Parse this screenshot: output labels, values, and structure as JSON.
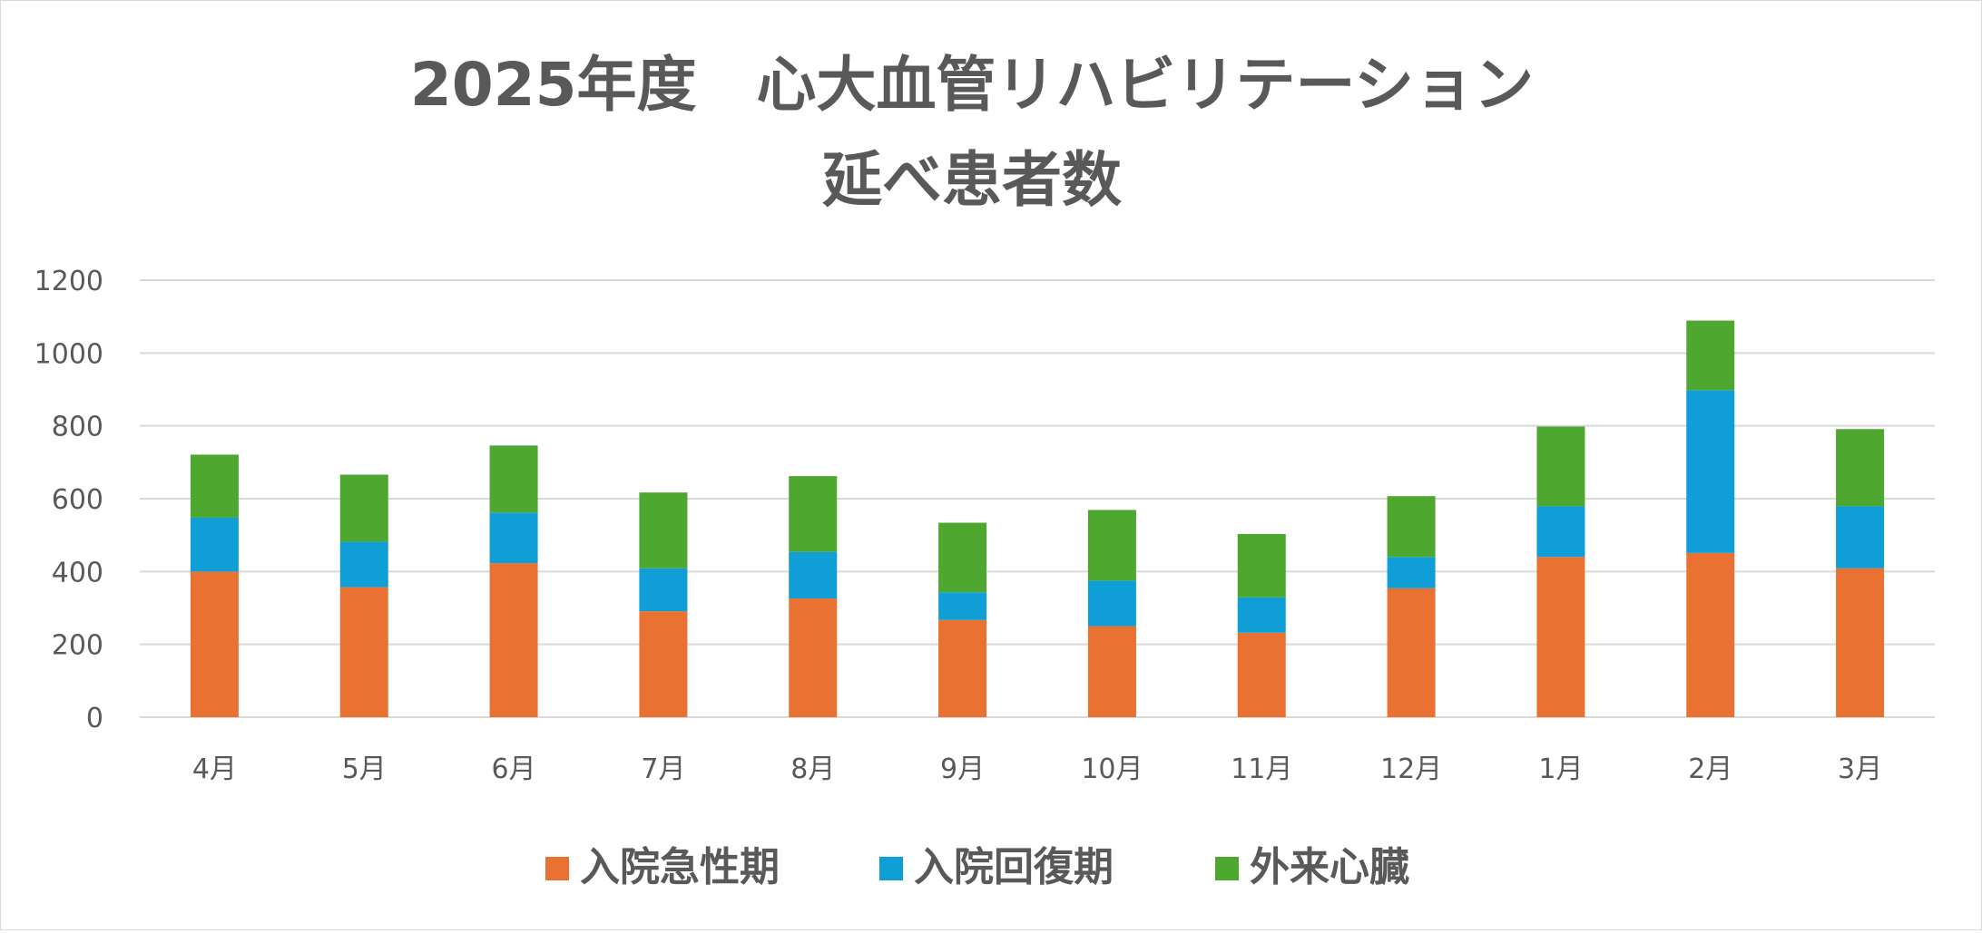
{
  "chart_data": {
    "type": "bar",
    "stacked": true,
    "title_lines": [
      "2025年度　心大血管リハビリテーション",
      "延べ患者数"
    ],
    "xlabel": "",
    "ylabel": "",
    "ylim": [
      0,
      1200
    ],
    "yticks": [
      "0",
      "200",
      "400",
      "600",
      "800",
      "1000",
      "1200"
    ],
    "grid": true,
    "legend_position": "bottom",
    "categories": [
      "4月",
      "5月",
      "6月",
      "7月",
      "8月",
      "9月",
      "10月",
      "11月",
      "12月",
      "1月",
      "2月",
      "3月"
    ],
    "series": [
      {
        "name": "入院急性期",
        "color": "#E97132",
        "values": [
          400,
          357,
          423,
          291,
          326,
          267,
          250,
          232,
          354,
          440,
          451,
          409
        ]
      },
      {
        "name": "入院回復期",
        "color": "#0F9ED5",
        "values": [
          148,
          125,
          139,
          118,
          128,
          76,
          125,
          97,
          86,
          139,
          447,
          170
        ]
      },
      {
        "name": "外来心臓",
        "color": "#4EA72E",
        "values": [
          173,
          184,
          184,
          208,
          208,
          191,
          194,
          174,
          167,
          219,
          191,
          212
        ]
      }
    ]
  }
}
